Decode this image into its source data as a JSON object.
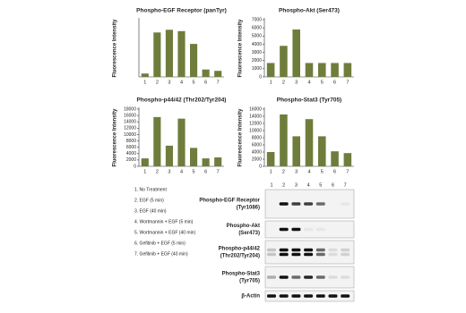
{
  "chart_data": [
    {
      "type": "bar",
      "title": "Phospho-EGF Receptor (panTyr)",
      "ylabel": "Fluorescence Intensity",
      "categories": [
        "1",
        "2",
        "3",
        "4",
        "5",
        "6",
        "7"
      ],
      "values": [
        500,
        6600,
        7000,
        6800,
        4900,
        1100,
        900
      ],
      "color": "#6f7d3c",
      "ylim": [
        0,
        8500
      ]
    },
    {
      "type": "bar",
      "title": "Phospho-Akt (Ser473)",
      "ylabel": "Fluorescence Intensity",
      "categories": [
        "1",
        "2",
        "3",
        "4",
        "5",
        "6",
        "7"
      ],
      "values": [
        1700,
        3800,
        5800,
        1700,
        1700,
        1700,
        1700
      ],
      "color": "#6f7d3c",
      "ylim": [
        0,
        7000
      ],
      "yticks": [
        0,
        1000,
        2000,
        3000,
        4000,
        5000,
        6000,
        7000
      ]
    },
    {
      "type": "bar",
      "title": "Phospho-p44/42 (Thr202/Tyr204)",
      "ylabel": "Fluorescence Intensity",
      "categories": [
        "1",
        "2",
        "3",
        "4",
        "5",
        "6",
        "7"
      ],
      "values": [
        2500,
        15500,
        6500,
        15000,
        5800,
        2500,
        2800
      ],
      "color": "#6f7d3c",
      "ylim": [
        0,
        18000
      ],
      "yticks": [
        0,
        2000,
        4000,
        6000,
        8000,
        10000,
        12000,
        14000,
        16000,
        18000
      ]
    },
    {
      "type": "bar",
      "title": "Phospho-Stat3 (Tyr705)",
      "ylabel": "Fluorescence Intensity",
      "categories": [
        "1",
        "2",
        "3",
        "4",
        "5",
        "6",
        "7"
      ],
      "values": [
        4000,
        14500,
        8400,
        13200,
        8400,
        4200,
        3700
      ],
      "color": "#6f7d3c",
      "ylim": [
        0,
        16000
      ],
      "yticks": [
        0,
        2000,
        4000,
        6000,
        8000,
        10000,
        12000,
        14000,
        16000
      ]
    }
  ],
  "treatments": [
    "1. No Treatment",
    "2. EGF (5 min)",
    "3. EGF (40 min)",
    "4. Wortmannin + EGF (5 min)",
    "5. Wortmannin + EGF (40 min)",
    "6. Gefitinib + EGF (5 min)",
    "7. Gefitinib + EGF (40 min)"
  ],
  "blot": {
    "lanes": [
      "1",
      "2",
      "3",
      "4",
      "5",
      "6",
      "7"
    ],
    "rows": [
      [
        "Phospho-EGF Receptor",
        "(Tyr1086)"
      ],
      [
        "Phospho-Akt",
        "(Ser473)"
      ],
      [
        "Phospho-p44/42",
        "(Thr202/Tyr204)"
      ],
      [
        "Phospho-Stat3",
        "(Tyr705)"
      ],
      [
        "β-Actin"
      ]
    ]
  }
}
